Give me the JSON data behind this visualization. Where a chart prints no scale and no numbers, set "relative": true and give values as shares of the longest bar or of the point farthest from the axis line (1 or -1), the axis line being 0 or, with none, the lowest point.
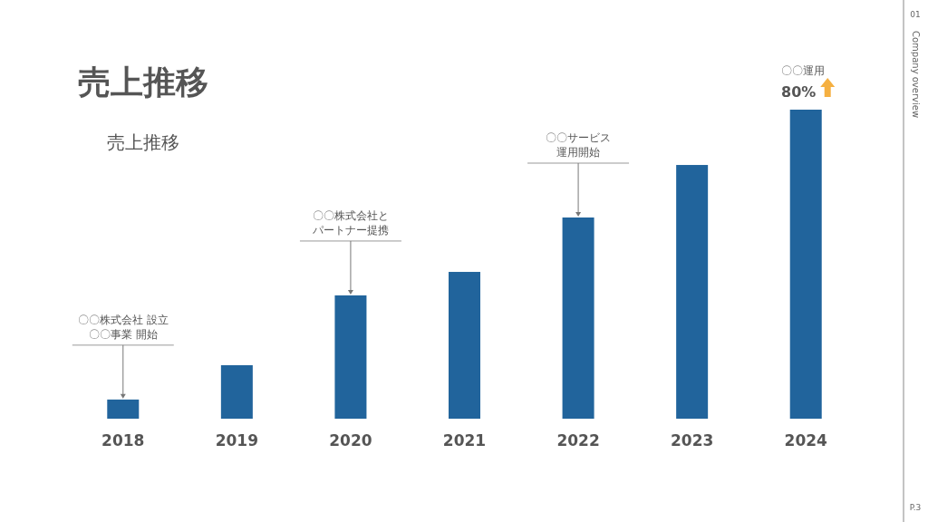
{
  "chart_data": {
    "type": "bar",
    "title": "売上推移",
    "subtitle": "売上推移",
    "categories": [
      "2018",
      "2019",
      "2020",
      "2021",
      "2022",
      "2023",
      "2024"
    ],
    "relative": true,
    "series": [
      {
        "color": "#21649c",
        "values": [
          0.062,
          0.173,
          0.399,
          0.475,
          0.651,
          0.821,
          1
        ]
      }
    ],
    "annotations": [
      "〇〇株式会社 設立",
      {
        "text": "〇〇事業 開始",
        "x": "2018",
        "y": 0.062
      },
      "〇〇株式会社と",
      {
        "text": "パートナー提携",
        "x": "2020",
        "y": 0.399
      },
      "〇〇サービス",
      {
        "text": "運用開始",
        "x": "2022",
        "y": 0.651
      },
      "〇〇運用",
      {
        "text": "80%",
        "x": "2024",
        "y": 1
      },
      "01",
      "Company overview",
      "P.3"
    ],
    "grid": false
  }
}
